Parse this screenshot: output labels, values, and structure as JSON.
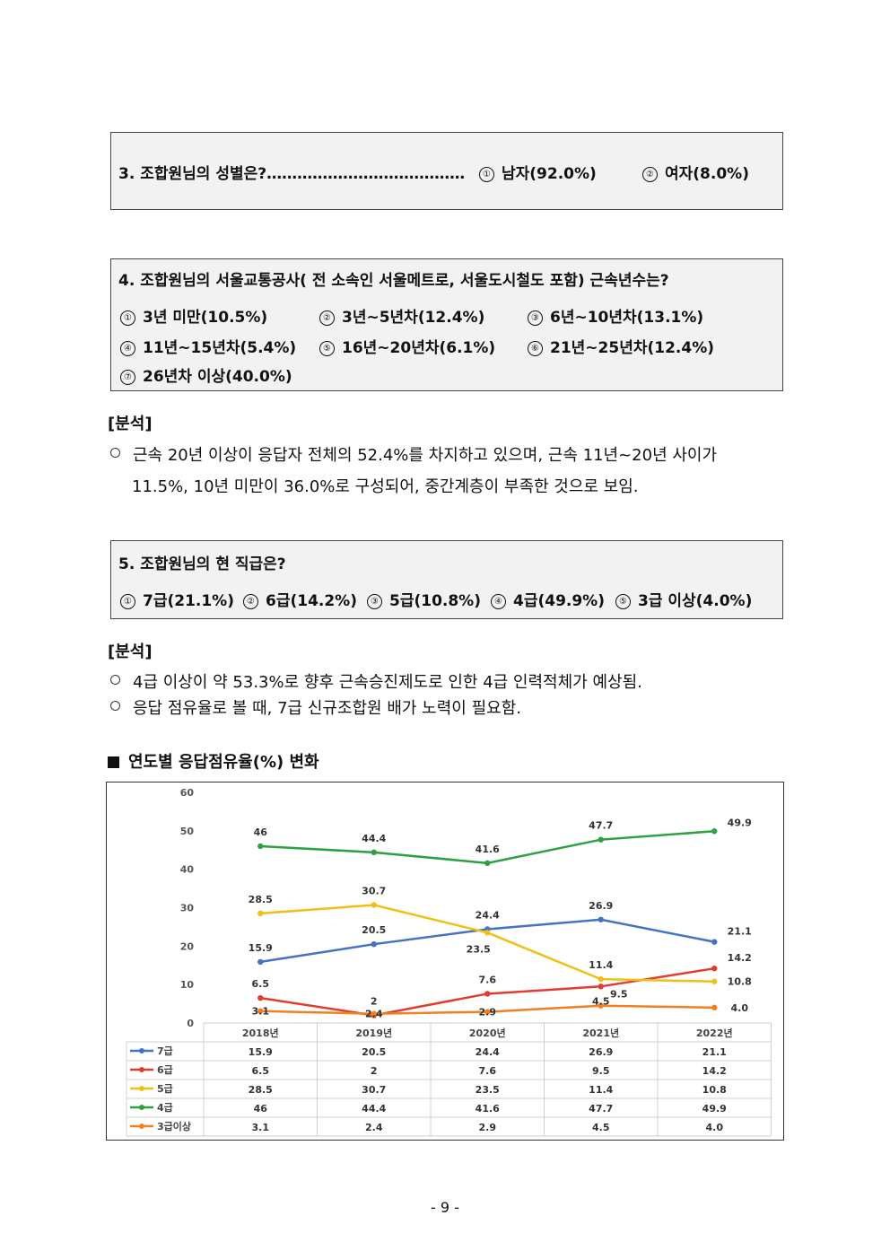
{
  "q3": {
    "question": "3. 조합원님의 성별은?…………………………………",
    "options": [
      {
        "num": "①",
        "label": "남자(92.0%)"
      },
      {
        "num": "②",
        "label": "여자(8.0%)"
      }
    ]
  },
  "q4": {
    "question": "4. 조합원님의 서울교통공사( 전 소속인 서울메트로, 서울도시철도 포함) 근속년수는?",
    "options": [
      {
        "num": "①",
        "label": "3년 미만(10.5%)"
      },
      {
        "num": "②",
        "label": "3년~5년차(12.4%)"
      },
      {
        "num": "③",
        "label": "6년~10년차(13.1%)"
      },
      {
        "num": "④",
        "label": "11년~15년차(5.4%)"
      },
      {
        "num": "⑤",
        "label": "16년~20년차(6.1%)"
      },
      {
        "num": "⑥",
        "label": "21년~25년차(12.4%)"
      },
      {
        "num": "⑦",
        "label": "26년차 이상(40.0%)"
      }
    ]
  },
  "analysis1": {
    "heading": "[분석]",
    "line1": "근속 20년 이상이 응답자 전체의 52.4%를 차지하고 있으며, 근속 11년~20년 사이가",
    "line2": "11.5%, 10년 미만이 36.0%로 구성되어, 중간계층이 부족한 것으로 보임."
  },
  "q5": {
    "question": "5. 조합원님의 현 직급은?",
    "options": [
      {
        "num": "①",
        "label": "7급(21.1%)"
      },
      {
        "num": "②",
        "label": "6급(14.2%)"
      },
      {
        "num": "③",
        "label": "5급(10.8%)"
      },
      {
        "num": "④",
        "label": "4급(49.9%)"
      },
      {
        "num": "⑤",
        "label": "3급 이상(4.0%)"
      }
    ]
  },
  "analysis2": {
    "heading": "[분석]",
    "bullets": [
      "4급 이상이 약 53.3%로 향후 근속승진제도로 인한 4급 인력적체가 예상됨.",
      "응답 점유율로 볼 때, 7급 신규조합원 배가 노력이 필요함."
    ]
  },
  "chart_title": "연도별 응답점유율(%) 변화",
  "chart_data": {
    "type": "line",
    "title": "연도별 응답점유율(%) 변화",
    "categories": [
      "2018년",
      "2019년",
      "2020년",
      "2021년",
      "2022년"
    ],
    "ylim": [
      0,
      60
    ],
    "yticks": [
      "0",
      "10",
      "20",
      "30",
      "40",
      "50",
      "60"
    ],
    "grid": false,
    "legend": "data-table-below",
    "series": [
      {
        "name": "7급",
        "color": "#4472C4",
        "values": [
          15.9,
          20.5,
          24.4,
          26.9,
          21.1
        ],
        "labels": [
          "15.9",
          "20.5",
          "24.4",
          "26.9",
          "21.1"
        ]
      },
      {
        "name": "6급",
        "color": "#E03C31",
        "values": [
          6.5,
          2,
          7.6,
          9.5,
          14.2
        ],
        "labels": [
          "6.5",
          "2",
          "7.6",
          "9.5",
          "14.2"
        ]
      },
      {
        "name": "5급",
        "color": "#F2C014",
        "values": [
          28.5,
          30.7,
          23.5,
          11.4,
          10.8
        ],
        "labels": [
          "28.5",
          "30.7",
          "23.5",
          "11.4",
          "10.8"
        ]
      },
      {
        "name": "4급",
        "color": "#2EA043",
        "values": [
          46,
          44.4,
          41.6,
          47.7,
          49.9
        ],
        "labels": [
          "46",
          "44.4",
          "41.6",
          "47.7",
          "49.9"
        ]
      },
      {
        "name": "3급이상",
        "color": "#F28020",
        "values": [
          3.1,
          2.4,
          2.9,
          4.5,
          4.0
        ],
        "labels": [
          "3.1",
          "2.4",
          "2.9",
          "4.5",
          "4.0"
        ]
      }
    ]
  },
  "page_number": "- 9 -"
}
